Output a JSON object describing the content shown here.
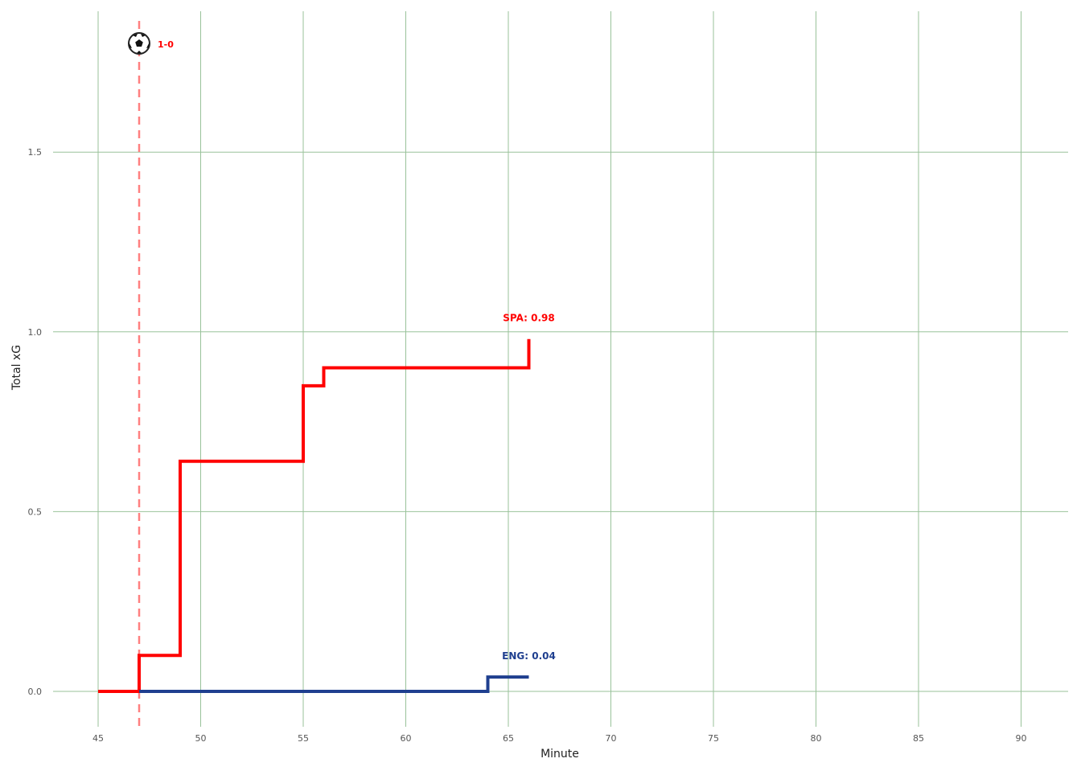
{
  "chart_data": {
    "type": "line",
    "title": "",
    "xlabel": "Minute",
    "ylabel": "Total xG",
    "xlim": [
      45,
      91
    ],
    "ylim": [
      -0.09,
      1.93
    ],
    "x_ticks": [
      45,
      50,
      55,
      60,
      65,
      70,
      75,
      80,
      85,
      90
    ],
    "y_ticks": [
      0.0,
      0.5,
      1.0,
      1.5
    ],
    "x_tick_labels": [
      "45",
      "50",
      "55",
      "60",
      "65",
      "70",
      "75",
      "80",
      "85",
      "90"
    ],
    "y_tick_labels": [
      "0.0",
      "0.5",
      "1.0",
      "1.5"
    ],
    "grid": true,
    "grid_color": "#99c29a",
    "series": [
      {
        "name": "SPA",
        "color": "#ff0000",
        "label": "SPA: 0.98",
        "step_points": [
          [
            45,
            0.0
          ],
          [
            47,
            0.0
          ],
          [
            47,
            0.1
          ],
          [
            49,
            0.1
          ],
          [
            49,
            0.64
          ],
          [
            55,
            0.64
          ],
          [
            55,
            0.85
          ],
          [
            56,
            0.85
          ],
          [
            56,
            0.9
          ],
          [
            66,
            0.9
          ],
          [
            66,
            0.98
          ]
        ]
      },
      {
        "name": "ENG",
        "color": "#1f3f8f",
        "label": "ENG: 0.04",
        "step_points": [
          [
            47,
            0.0
          ],
          [
            64,
            0.0
          ],
          [
            64,
            0.04
          ],
          [
            66,
            0.04
          ]
        ]
      }
    ],
    "annotations": [
      {
        "type": "goal",
        "minute": 47,
        "team_color": "#ff8080",
        "score": "1-0",
        "icon": "soccer-ball-icon"
      }
    ]
  }
}
